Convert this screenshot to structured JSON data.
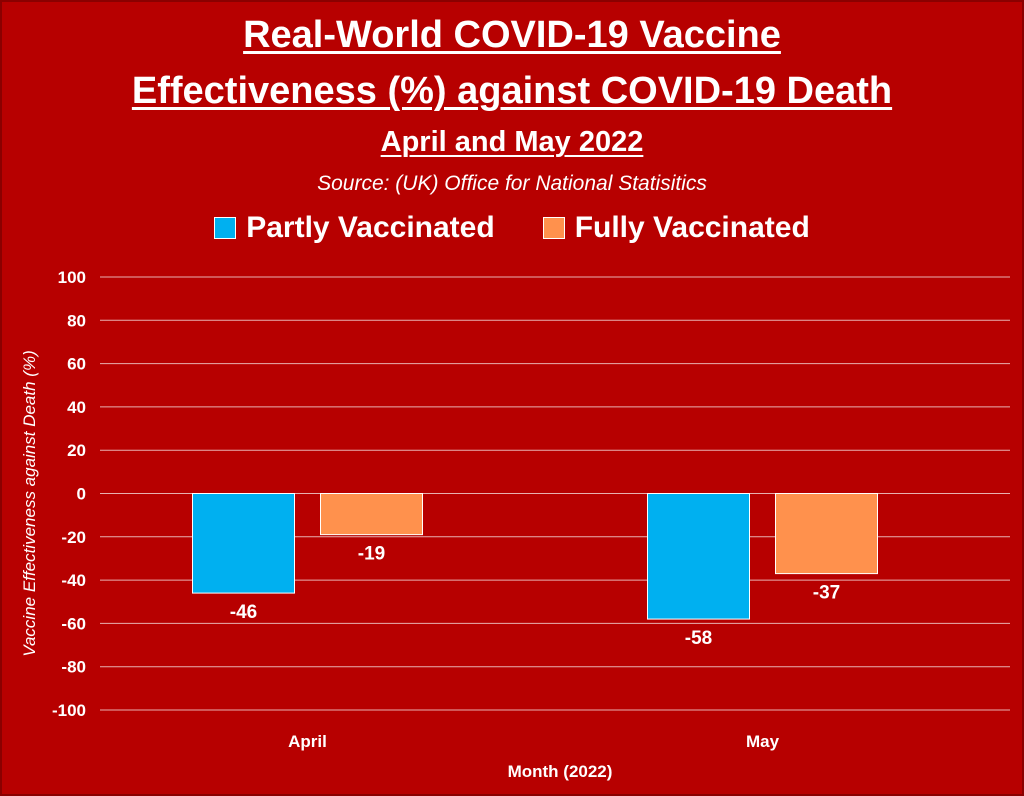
{
  "chart_data": {
    "type": "bar",
    "title_line1": "Real-World COVID-19 Vaccine",
    "title_line2": "Effectiveness (%) against COVID-19 Death",
    "subtitle": "April and May 2022",
    "source": "Source: (UK) Office for National Statisitics",
    "categories": [
      "April",
      "May"
    ],
    "series": [
      {
        "name": "Partly Vaccinated",
        "values": [
          -46,
          -58
        ],
        "color": "#00b0f0"
      },
      {
        "name": "Fully Vaccinated",
        "values": [
          -19,
          -37
        ],
        "color": "#ff914d"
      }
    ],
    "xlabel": "Month (2022)",
    "ylabel": "Vaccine Effectiveness against Death (%)",
    "ylim": [
      -100,
      100
    ],
    "yticks": [
      100,
      80,
      60,
      40,
      20,
      0,
      -20,
      -40,
      -60,
      -80,
      -100
    ],
    "grid": true,
    "legend_position": "top"
  }
}
